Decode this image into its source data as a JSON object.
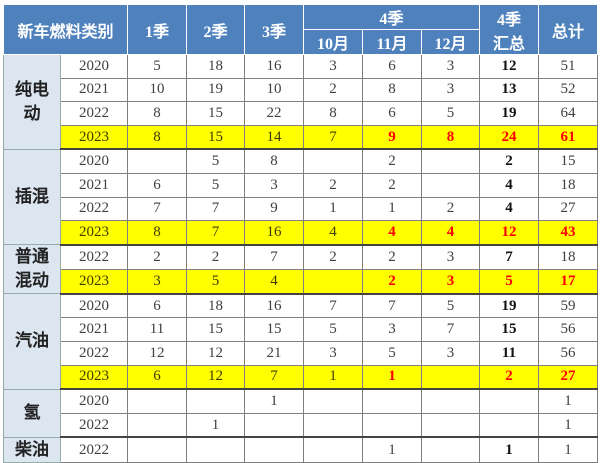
{
  "header": {
    "category": "新车燃料类别",
    "q1": "1季",
    "q2": "2季",
    "q3": "3季",
    "q4": "4季",
    "oct": "10月",
    "nov": "11月",
    "dec": "12月",
    "q4sum": "4季汇总",
    "total": "总计"
  },
  "colors": {
    "header": "#4f81bd",
    "highlight": "#ffff00",
    "red": "#ff0000",
    "category_bg": "#dce6f1"
  },
  "groups": [
    {
      "name": "纯电动",
      "rows": [
        [
          "2020",
          "5",
          "18",
          "16",
          "3",
          "6",
          "3",
          "12",
          "51"
        ],
        [
          "2021",
          "10",
          "19",
          "10",
          "2",
          "8",
          "3",
          "13",
          "52"
        ],
        [
          "2022",
          "8",
          "15",
          "22",
          "8",
          "6",
          "5",
          "19",
          "64"
        ],
        [
          "2023",
          "8",
          "15",
          "14",
          "7",
          "9",
          "8",
          "24",
          "61"
        ]
      ]
    },
    {
      "name": "插混",
      "rows": [
        [
          "2020",
          "",
          "5",
          "8",
          "",
          "2",
          "",
          "2",
          "15"
        ],
        [
          "2021",
          "6",
          "5",
          "3",
          "2",
          "2",
          "",
          "4",
          "18"
        ],
        [
          "2022",
          "7",
          "7",
          "9",
          "1",
          "1",
          "2",
          "4",
          "27"
        ],
        [
          "2023",
          "8",
          "7",
          "16",
          "4",
          "4",
          "4",
          "12",
          "43"
        ]
      ]
    },
    {
      "name": "普通混动",
      "rows": [
        [
          "2022",
          "2",
          "2",
          "7",
          "2",
          "2",
          "3",
          "7",
          "18"
        ],
        [
          "2023",
          "3",
          "5",
          "4",
          "",
          "2",
          "3",
          "5",
          "17"
        ]
      ]
    },
    {
      "name": "汽油",
      "rows": [
        [
          "2020",
          "6",
          "18",
          "16",
          "7",
          "7",
          "5",
          "19",
          "59"
        ],
        [
          "2021",
          "11",
          "15",
          "15",
          "5",
          "3",
          "7",
          "15",
          "56"
        ],
        [
          "2022",
          "12",
          "12",
          "21",
          "3",
          "5",
          "3",
          "11",
          "56"
        ],
        [
          "2023",
          "6",
          "12",
          "7",
          "1",
          "1",
          "",
          "2",
          "27"
        ]
      ]
    },
    {
      "name": "氢",
      "rows": [
        [
          "2020",
          "",
          "",
          "1",
          "",
          "",
          "",
          "",
          "1"
        ],
        [
          "2022",
          "",
          "1",
          "",
          "",
          "",
          "",
          "",
          "1"
        ]
      ]
    },
    {
      "name": "柴油",
      "rows": [
        [
          "2022",
          "",
          "",
          "",
          "",
          "1",
          "",
          "1",
          "1"
        ]
      ]
    }
  ]
}
